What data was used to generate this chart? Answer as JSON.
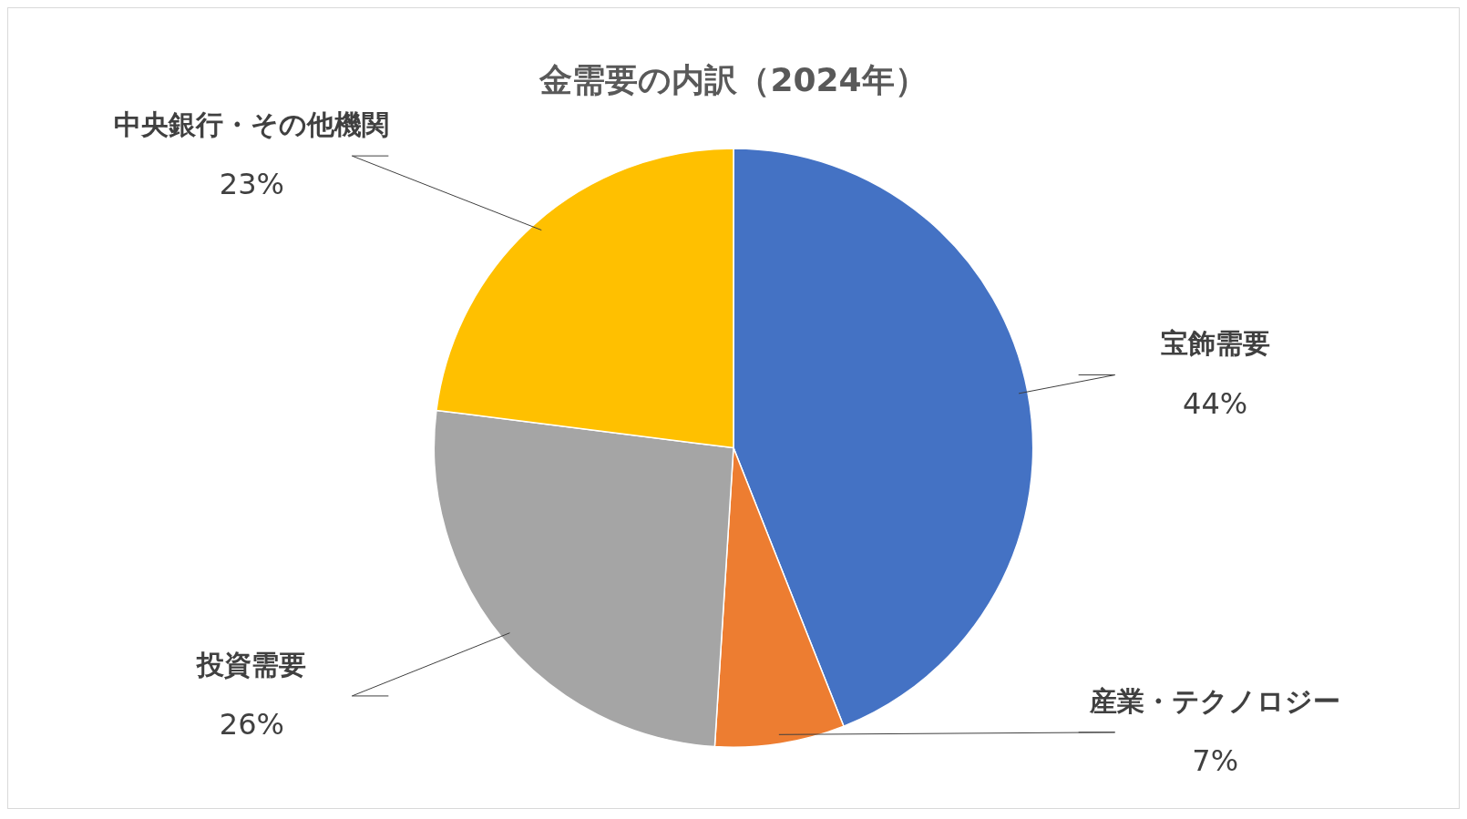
{
  "chart_data": {
    "type": "pie",
    "title": "金需要の内訳（2024年）",
    "categories": [
      "宝飾需要",
      "産業・テクノロジー",
      "投資需要",
      "中央銀行・その他機関"
    ],
    "values": [
      44,
      7,
      26,
      23
    ],
    "value_labels": [
      "44%",
      "7%",
      "26%",
      "23%"
    ],
    "colors": [
      "#4472c4",
      "#ed7d31",
      "#a5a5a5",
      "#ffc000"
    ],
    "legend": false
  }
}
